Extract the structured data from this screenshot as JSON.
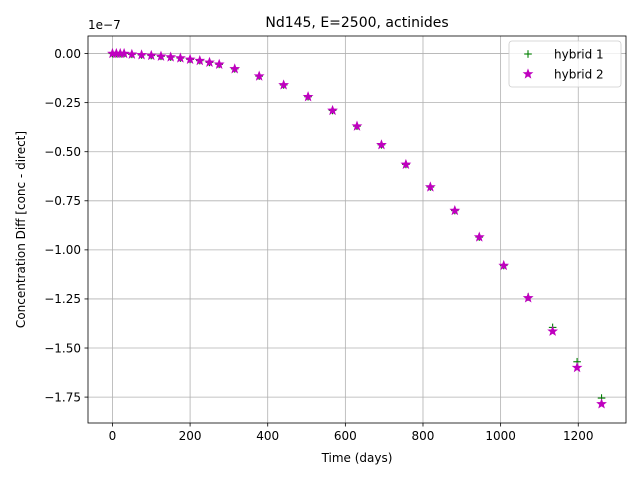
{
  "chart_data": {
    "type": "scatter",
    "title": "Nd145, E=2500, actinides",
    "xlabel": "Time (days)",
    "ylabel": "Concentration Diff [conc - direct]",
    "y_offset_text": "1e−7",
    "y_scale": 1e-07,
    "xlim": [
      -63,
      1323
    ],
    "ylim": [
      -1.882,
      0.0895
    ],
    "x_ticks": [
      0,
      200,
      400,
      600,
      800,
      1000,
      1200
    ],
    "x_tick_labels": [
      "0",
      "200",
      "400",
      "600",
      "800",
      "1000",
      "1200"
    ],
    "y_ticks": [
      0,
      -0.25,
      -0.5,
      -0.75,
      -1.0,
      -1.25,
      -1.5,
      -1.75
    ],
    "y_tick_labels": [
      "0.00",
      "−0.25",
      "−0.50",
      "−0.75",
      "−1.00",
      "−1.25",
      "−1.50",
      "−1.75"
    ],
    "grid": true,
    "legend_position": "upper-right",
    "x": [
      0,
      10,
      20,
      30,
      50,
      75,
      100,
      125,
      150,
      175,
      200,
      225,
      250,
      275,
      315,
      378,
      441,
      504,
      567,
      630,
      693,
      756,
      819,
      882,
      945,
      1008,
      1071,
      1134,
      1197,
      1260
    ],
    "series": [
      {
        "name": "hybrid 1",
        "marker": "+",
        "color": "#008000",
        "values": [
          0,
          0,
          0,
          0,
          -0.004,
          -0.007,
          -0.01,
          -0.014,
          -0.018,
          -0.023,
          -0.03,
          -0.036,
          -0.045,
          -0.055,
          -0.078,
          -0.115,
          -0.16,
          -0.22,
          -0.29,
          -0.37,
          -0.465,
          -0.565,
          -0.68,
          -0.8,
          -0.935,
          -1.08,
          -1.24,
          -1.395,
          -1.57,
          -1.755
        ]
      },
      {
        "name": "hybrid 2",
        "marker": "*",
        "color": "#bf00bf",
        "values": [
          0,
          0,
          0,
          0,
          -0.004,
          -0.007,
          -0.01,
          -0.014,
          -0.018,
          -0.023,
          -0.03,
          -0.036,
          -0.045,
          -0.055,
          -0.078,
          -0.115,
          -0.16,
          -0.22,
          -0.29,
          -0.37,
          -0.465,
          -0.565,
          -0.68,
          -0.8,
          -0.935,
          -1.08,
          -1.245,
          -1.415,
          -1.6,
          -1.785
        ]
      }
    ]
  }
}
